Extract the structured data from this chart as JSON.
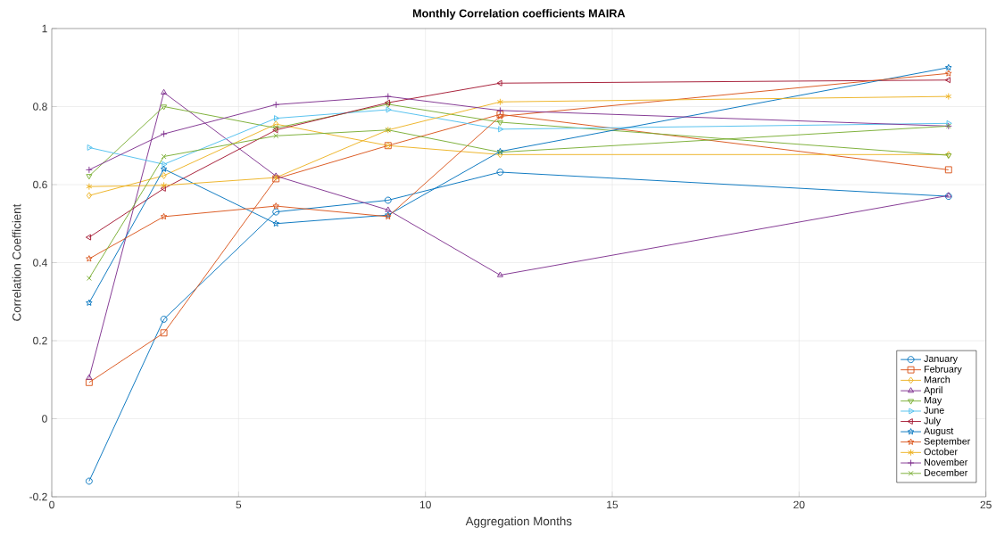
{
  "chart_data": {
    "type": "line",
    "title": "Monthly Correlation coefficients MAIRA",
    "xlabel": "Aggregation Months",
    "ylabel": "Correlation Coefficient",
    "x": [
      1,
      3,
      6,
      9,
      12,
      24
    ],
    "xlim": [
      0,
      25
    ],
    "xticks": [
      0,
      5,
      10,
      15,
      20,
      25
    ],
    "ylim": [
      -0.2,
      1
    ],
    "yticks": [
      -0.2,
      0,
      0.2,
      0.4,
      0.6,
      0.8,
      1
    ],
    "grid": true,
    "legend": "bottom right",
    "line_style": "solid",
    "series": [
      {
        "name": "January",
        "color": "#0072bd",
        "marker": "circle",
        "values": [
          -0.16,
          0.255,
          0.53,
          0.56,
          0.632,
          0.57
        ]
      },
      {
        "name": "February",
        "color": "#d95319",
        "marker": "square",
        "values": [
          0.093,
          0.22,
          0.615,
          0.7,
          0.78,
          0.638
        ]
      },
      {
        "name": "March",
        "color": "#edb120",
        "marker": "diamond",
        "values": [
          0.572,
          0.623,
          0.755,
          0.7,
          0.677,
          0.677
        ]
      },
      {
        "name": "April",
        "color": "#7e2f8e",
        "marker": "triangle",
        "values": [
          0.105,
          0.836,
          0.622,
          0.535,
          0.368,
          0.572
        ]
      },
      {
        "name": "May",
        "color": "#77ac30",
        "marker": "triangle-down",
        "values": [
          0.622,
          0.8,
          0.745,
          0.806,
          0.76,
          0.675
        ]
      },
      {
        "name": "June",
        "color": "#4dbeee",
        "marker": "triangle-right",
        "values": [
          0.695,
          0.652,
          0.77,
          0.792,
          0.742,
          0.757
        ]
      },
      {
        "name": "July",
        "color": "#a2142f",
        "marker": "triangle-left",
        "values": [
          0.465,
          0.59,
          0.74,
          0.81,
          0.86,
          0.868
        ]
      },
      {
        "name": "August",
        "color": "#0072bd",
        "marker": "star",
        "values": [
          0.297,
          0.64,
          0.5,
          0.522,
          0.685,
          0.9
        ]
      },
      {
        "name": "September",
        "color": "#d95319",
        "marker": "star",
        "values": [
          0.41,
          0.518,
          0.545,
          0.518,
          0.775,
          0.885
        ]
      },
      {
        "name": "October",
        "color": "#edb120",
        "marker": "cross-asterisk",
        "values": [
          0.595,
          0.598,
          0.618,
          0.74,
          0.812,
          0.826
        ]
      },
      {
        "name": "November",
        "color": "#7e2f8e",
        "marker": "plus",
        "values": [
          0.638,
          0.73,
          0.805,
          0.826,
          0.79,
          0.75
        ]
      },
      {
        "name": "December",
        "color": "#77ac30",
        "marker": "cross",
        "values": [
          0.36,
          0.672,
          0.725,
          0.74,
          0.683,
          0.75
        ]
      }
    ]
  }
}
